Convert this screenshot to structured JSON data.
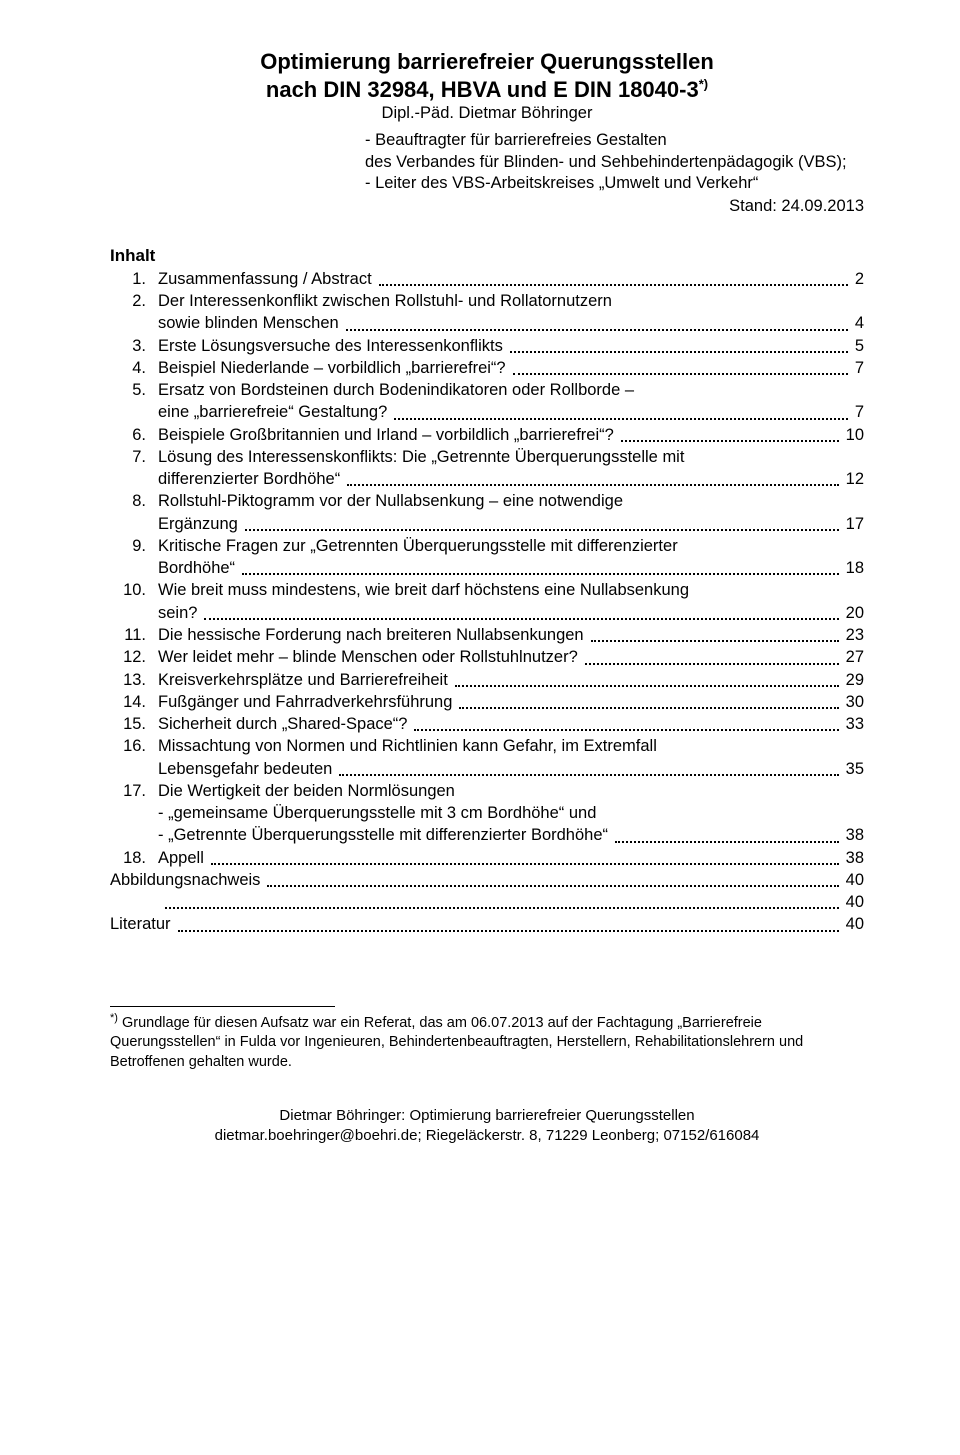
{
  "title": {
    "line1": "Optimierung barrierefreier Querungsstellen",
    "line2_prefix": "nach DIN 32984, HBVA und E DIN 18040-3",
    "line2_sup": "*)"
  },
  "author": {
    "name": "Dipl.-Päd. Dietmar Böhringer",
    "role1": "-  Beauftragter für barrierefreies Gestalten",
    "role1b": "   des Verbandes für Blinden- und Sehbehindertenpädagogik (VBS);",
    "role2": "-  Leiter des VBS-Arbeitskreises „Umwelt und Verkehr“"
  },
  "stand": "Stand: 24.09.2013",
  "inhalt_label": "Inhalt",
  "toc": [
    {
      "num": "1.",
      "lines": [
        "Zusammenfassung / Abstract"
      ],
      "page": "2"
    },
    {
      "num": "2.",
      "lines": [
        "Der Interessenkonflikt zwischen Rollstuhl- und Rollatornutzern",
        "sowie blinden Menschen"
      ],
      "page": "4"
    },
    {
      "num": "3.",
      "lines": [
        "Erste Lösungsversuche des Interessenkonflikts"
      ],
      "page": "5"
    },
    {
      "num": "4.",
      "lines": [
        "Beispiel Niederlande – vorbildlich „barrierefrei“?"
      ],
      "page": "7"
    },
    {
      "num": "5.",
      "lines": [
        "Ersatz von Bordsteinen durch Bodenindikatoren oder Rollborde –",
        "eine „barrierefreie“ Gestaltung?"
      ],
      "page": "7"
    },
    {
      "num": "6.",
      "lines": [
        "Beispiele Großbritannien und Irland – vorbildlich „barrierefrei“?"
      ],
      "page": "10"
    },
    {
      "num": "7.",
      "lines": [
        "Lösung des Interessenskonflikts: Die „Getrennte Überquerungsstelle mit",
        "differenzierter Bordhöhe“"
      ],
      "page": "12"
    },
    {
      "num": "8.",
      "lines": [
        "Rollstuhl-Piktogramm vor der Nullabsenkung – eine notwendige",
        "Ergänzung"
      ],
      "page": "17"
    },
    {
      "num": "9.",
      "lines": [
        "Kritische Fragen zur „Getrennten Überquerungsstelle mit differenzierter",
        "Bordhöhe“"
      ],
      "page": "18"
    },
    {
      "num": "10.",
      "lines": [
        "Wie breit muss mindestens, wie breit darf höchstens eine Nullabsenkung",
        "sein?"
      ],
      "page": "20"
    },
    {
      "num": "11.",
      "lines": [
        "Die hessische Forderung nach breiteren Nullabsenkungen"
      ],
      "page": "23"
    },
    {
      "num": "12.",
      "lines": [
        "Wer leidet mehr – blinde Menschen oder Rollstuhlnutzer?"
      ],
      "page": "27"
    },
    {
      "num": "13.",
      "lines": [
        "Kreisverkehrsplätze und Barrierefreiheit"
      ],
      "page": "29"
    },
    {
      "num": "14.",
      "lines": [
        "Fußgänger und Fahrradverkehrsführung"
      ],
      "page": "30"
    },
    {
      "num": "15.",
      "lines": [
        "Sicherheit durch „Shared-Space“?"
      ],
      "page": "33"
    },
    {
      "num": "16.",
      "lines": [
        "Missachtung von Normen und Richtlinien kann Gefahr, im Extremfall",
        "Lebensgefahr bedeuten"
      ],
      "page": "35"
    },
    {
      "num": "17.",
      "lines": [
        "Die Wertigkeit der beiden Normlösungen",
        "- „gemeinsame Überquerungsstelle mit 3 cm Bordhöhe“ und",
        "- „Getrennte Überquerungsstelle mit differenzierter Bordhöhe“"
      ],
      "page": "38"
    },
    {
      "num": "18.",
      "lines": [
        "Appell"
      ],
      "page": "38"
    },
    {
      "num": "",
      "lines": [
        "Abbildungsnachweis"
      ],
      "page": "40",
      "nonum": true
    },
    {
      "num": "",
      "lines": [
        ""
      ],
      "page": "40",
      "nonum": true,
      "indent": true
    },
    {
      "num": "",
      "lines": [
        "Literatur"
      ],
      "page": "40",
      "nonum": true
    }
  ],
  "footnote": {
    "marker": "*)",
    "text": " Grundlage für diesen Aufsatz war ein Referat, das am 06.07.2013 auf der Fachtagung „Barrierefreie Querungsstellen“ in Fulda vor Ingenieuren, Behindertenbeauftragten, Herstellern, Rehabilitationslehrern und Betroffenen gehalten wurde."
  },
  "footer": {
    "line1": "Dietmar Böhringer: Optimierung barrierefreier Querungsstellen",
    "line2": "dietmar.boehringer@boehri.de; Riegeläckerstr. 8, 71229 Leonberg; 07152/616084"
  }
}
